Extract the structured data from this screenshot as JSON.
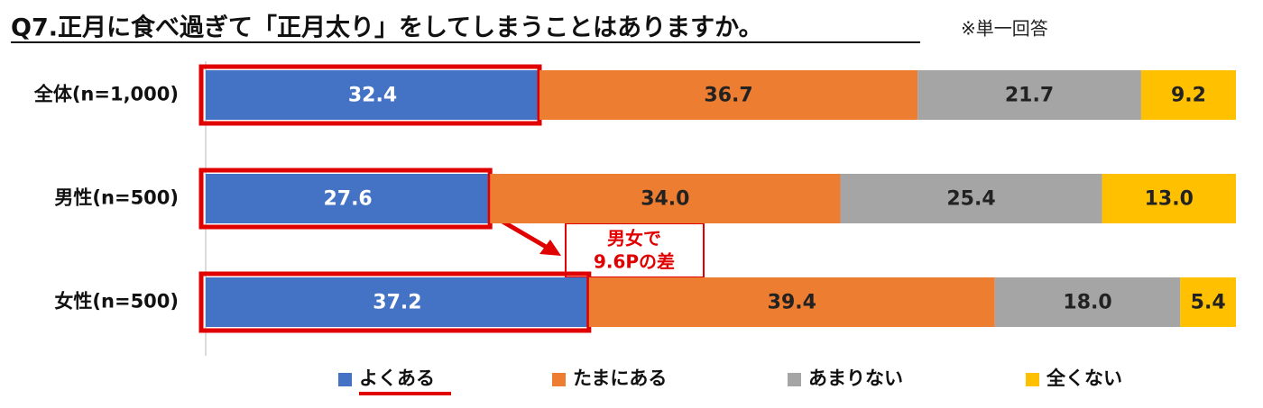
{
  "chart_data": {
    "type": "stacked-bar-horizontal",
    "title": "Q7.正月に食べ過ぎて「正月太り」をしてしまうことはありますか。",
    "subtitle": "※単一回答",
    "categories": [
      "全体(n=1,000)",
      "男性(n=500)",
      "女性(n=500)"
    ],
    "series": [
      {
        "name": "よくある",
        "color": "#4472c4",
        "values": [
          32.4,
          27.6,
          37.2
        ],
        "value_labels": [
          "32.4",
          "27.6",
          "37.2"
        ]
      },
      {
        "name": "たまにある",
        "color": "#ed7d31",
        "values": [
          36.7,
          34.0,
          39.4
        ],
        "value_labels": [
          "36.7",
          "34.0",
          "39.4"
        ]
      },
      {
        "name": "あまりない",
        "color": "#a5a5a5",
        "values": [
          21.7,
          25.4,
          18.0
        ],
        "value_labels": [
          "21.7",
          "25.4",
          "18.0"
        ]
      },
      {
        "name": "全くない",
        "color": "#ffc000",
        "values": [
          9.2,
          13.0,
          5.4
        ],
        "value_labels": [
          "9.2",
          "13.0",
          "5.4"
        ]
      }
    ],
    "xlim": [
      0,
      100
    ],
    "annotation": [
      "男女で",
      "9.6Pの差"
    ]
  }
}
